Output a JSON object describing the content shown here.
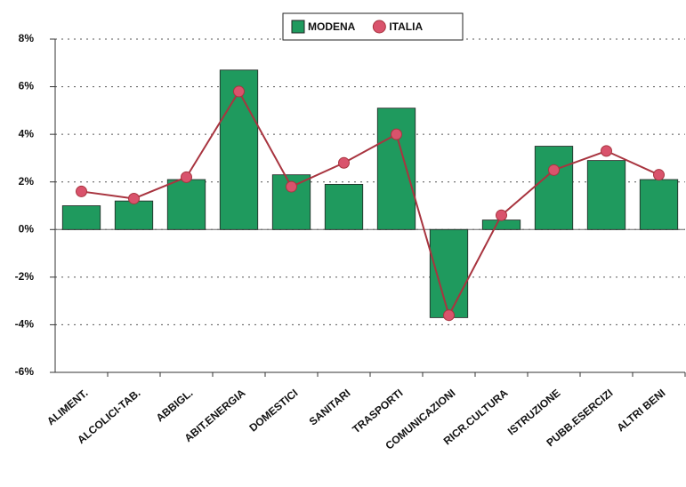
{
  "chart_data": {
    "type": "bar",
    "categories": [
      "ALIMENT.",
      "ALCOLICI-TAB.",
      "ABBIGL.",
      "ABIT.ENERGIA",
      "DOMESTICI",
      "SANITARI",
      "TRASPORTI",
      "COMUNICAZIONI",
      "RICR.CULTURA",
      "ISTRUZIONE",
      "PUBB.ESERCIZI",
      "ALTRI BENI"
    ],
    "series": [
      {
        "name": "MODENA",
        "type": "bar",
        "color": "#1f9a5e",
        "values": [
          1.0,
          1.2,
          2.1,
          6.7,
          2.3,
          1.9,
          5.1,
          -3.7,
          0.4,
          3.5,
          2.9,
          2.1
        ]
      },
      {
        "name": "ITALIA",
        "type": "line",
        "color": "#a8343f",
        "marker_color": "#d9536c",
        "values": [
          1.6,
          1.3,
          2.2,
          5.8,
          1.8,
          2.8,
          4.0,
          -3.6,
          0.6,
          2.5,
          3.3,
          2.3
        ]
      }
    ],
    "ylim": [
      -6,
      8
    ],
    "yticks": [
      {
        "value": -6,
        "label": "-6%"
      },
      {
        "value": -4,
        "label": "-4%"
      },
      {
        "value": -2,
        "label": "-2%"
      },
      {
        "value": 0,
        "label": "0%"
      },
      {
        "value": 2,
        "label": "2%"
      },
      {
        "value": 4,
        "label": "4%"
      },
      {
        "value": 6,
        "label": "6%"
      },
      {
        "value": 8,
        "label": "8%"
      }
    ],
    "grid": true,
    "legend": "top"
  }
}
